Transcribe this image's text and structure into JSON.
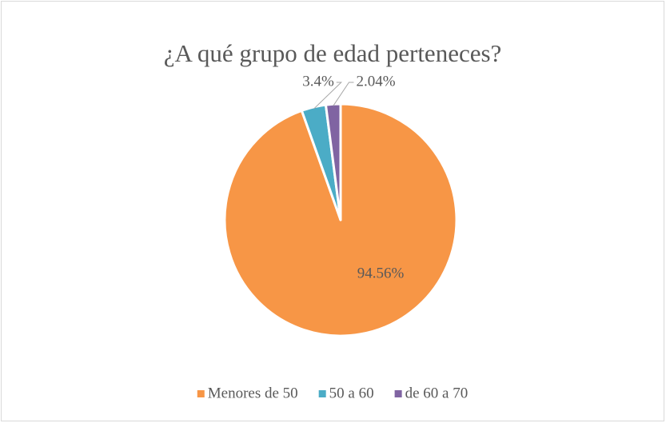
{
  "chart_data": {
    "type": "pie",
    "title": "¿A qué grupo de edad perteneces?",
    "categories": [
      "Menores de 50",
      "50 a 60",
      "de 60 a 70"
    ],
    "values": [
      94.56,
      3.4,
      2.04
    ],
    "value_labels": [
      "94.56%",
      "3.4%",
      "2.04%"
    ],
    "colors": [
      "#F79646",
      "#4BACC6",
      "#8064A2"
    ],
    "legend": "bottom"
  }
}
